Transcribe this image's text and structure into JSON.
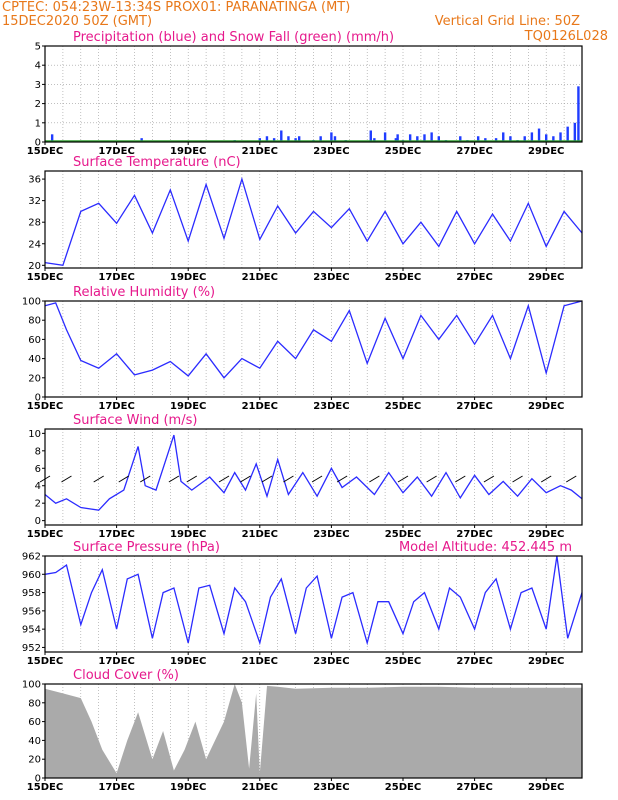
{
  "header": {
    "line1": "CPTEC:  054:23W-13:34S   PROX01: PARANATINGA (MT)",
    "line2_left": "15DEC2020 50Z (GMT)",
    "line2_right": "Vertical Grid Line: 50Z",
    "code": "TQ0126L028"
  },
  "x_labels": [
    "15DEC",
    "17DEC",
    "19DEC",
    "21DEC",
    "23DEC",
    "25DEC",
    "27DEC",
    "29DEC"
  ],
  "colors": {
    "line": "#2b2bff",
    "bar": "#1f3cff",
    "snow": "#2e9e2e",
    "cloud": "#aaaaaa",
    "title": "#e6198c",
    "header": "#e8781a"
  },
  "chart_data": [
    {
      "type": "bar",
      "title": "Precipitation (blue) and Snow Fall (green) (mm/h)",
      "ylim": [
        0,
        5
      ],
      "yticks": [
        0,
        1,
        2,
        3,
        4,
        5
      ],
      "xlim": [
        0,
        15
      ],
      "grid": "dotted",
      "series": [
        {
          "name": "Precipitation",
          "values": [
            [
              0.2,
              0.4
            ],
            [
              2.7,
              0.2
            ],
            [
              5.3,
              0.1
            ],
            [
              6.0,
              0.2
            ],
            [
              6.2,
              0.3
            ],
            [
              6.4,
              0.2
            ],
            [
              6.6,
              0.6
            ],
            [
              6.8,
              0.3
            ],
            [
              7.0,
              0.2
            ],
            [
              7.1,
              0.3
            ],
            [
              7.5,
              0.1
            ],
            [
              7.7,
              0.3
            ],
            [
              8.0,
              0.5
            ],
            [
              8.1,
              0.3
            ],
            [
              8.4,
              0.1
            ],
            [
              9.1,
              0.6
            ],
            [
              9.2,
              0.2
            ],
            [
              9.5,
              0.5
            ],
            [
              9.8,
              0.2
            ],
            [
              9.85,
              0.4
            ],
            [
              10.0,
              0.1
            ],
            [
              10.2,
              0.4
            ],
            [
              10.4,
              0.3
            ],
            [
              10.6,
              0.4
            ],
            [
              10.8,
              0.5
            ],
            [
              11.0,
              0.3
            ],
            [
              11.2,
              0.1
            ],
            [
              11.6,
              0.3
            ],
            [
              11.8,
              0.1
            ],
            [
              12.1,
              0.3
            ],
            [
              12.3,
              0.2
            ],
            [
              12.6,
              0.2
            ],
            [
              12.8,
              0.5
            ],
            [
              13.0,
              0.3
            ],
            [
              13.2,
              0.1
            ],
            [
              13.4,
              0.3
            ],
            [
              13.6,
              0.5
            ],
            [
              13.8,
              0.7
            ],
            [
              14.0,
              0.4
            ],
            [
              14.2,
              0.3
            ],
            [
              14.4,
              0.5
            ],
            [
              14.6,
              0.8
            ],
            [
              14.8,
              1.0
            ],
            [
              14.9,
              2.9
            ]
          ]
        },
        {
          "name": "Snow Fall",
          "values": []
        }
      ]
    },
    {
      "type": "line",
      "title": "Surface Temperature (nC)",
      "ylim": [
        19.5,
        37.5
      ],
      "yticks": [
        20,
        24,
        28,
        32,
        36
      ],
      "xlim": [
        0,
        15
      ],
      "x": [
        0,
        0.5,
        1.0,
        1.5,
        2.0,
        2.5,
        3.0,
        3.5,
        4.0,
        4.5,
        5.0,
        5.5,
        6.0,
        6.5,
        7.0,
        7.5,
        8.0,
        8.5,
        9.0,
        9.5,
        10.0,
        10.5,
        11.0,
        11.5,
        12.0,
        12.5,
        13.0,
        13.5,
        14.0,
        14.5,
        15.0
      ],
      "values": [
        20.5,
        20.0,
        30.0,
        31.5,
        27.8,
        33.0,
        26.0,
        34.0,
        24.5,
        35.0,
        25.0,
        36.0,
        24.8,
        31.0,
        26.0,
        30.0,
        27.0,
        30.5,
        24.5,
        30.0,
        24.0,
        28.0,
        23.5,
        30.0,
        24.0,
        29.5,
        24.5,
        31.5,
        23.5,
        30.0,
        26.0
      ]
    },
    {
      "type": "line",
      "title": "Relative Humidity (%)",
      "ylim": [
        0,
        100
      ],
      "yticks": [
        0,
        20,
        40,
        60,
        80,
        100
      ],
      "xlim": [
        0,
        15
      ],
      "x": [
        0,
        0.3,
        0.6,
        1.0,
        1.5,
        2.0,
        2.5,
        3.0,
        3.5,
        4.0,
        4.5,
        5.0,
        5.5,
        6.0,
        6.5,
        7.0,
        7.5,
        8.0,
        8.5,
        9.0,
        9.5,
        10.0,
        10.5,
        11.0,
        11.5,
        12.0,
        12.5,
        13.0,
        13.5,
        14.0,
        14.5,
        15.0
      ],
      "values": [
        95,
        98,
        70,
        38,
        30,
        45,
        23,
        28,
        37,
        22,
        45,
        20,
        40,
        30,
        58,
        40,
        70,
        58,
        90,
        35,
        82,
        40,
        85,
        60,
        85,
        55,
        85,
        40,
        95,
        25,
        95,
        100
      ]
    },
    {
      "type": "line",
      "title": "Surface Wind (m/s)",
      "ylim": [
        -0.5,
        10.5
      ],
      "yticks": [
        0,
        2,
        4,
        6,
        8,
        10
      ],
      "xlim": [
        0,
        15
      ],
      "x": [
        0,
        0.3,
        0.6,
        1.0,
        1.5,
        1.8,
        2.2,
        2.6,
        2.8,
        3.1,
        3.6,
        3.8,
        4.1,
        4.6,
        5.0,
        5.3,
        5.6,
        5.9,
        6.2,
        6.5,
        6.8,
        7.2,
        7.6,
        8.0,
        8.3,
        8.7,
        9.2,
        9.6,
        10.0,
        10.4,
        10.8,
        11.2,
        11.6,
        12.0,
        12.4,
        12.8,
        13.2,
        13.6,
        14.0,
        14.4,
        14.7,
        15.0
      ],
      "values": [
        3.0,
        2.0,
        2.5,
        1.5,
        1.2,
        2.5,
        3.5,
        8.5,
        4.0,
        3.5,
        9.8,
        4.5,
        3.5,
        5.0,
        3.2,
        5.5,
        3.5,
        6.5,
        2.8,
        7.0,
        3.0,
        5.5,
        2.8,
        6.0,
        3.8,
        5.0,
        3.0,
        5.5,
        3.2,
        5.0,
        2.8,
        5.5,
        2.6,
        5.2,
        3.0,
        4.5,
        2.8,
        4.8,
        3.2,
        4.0,
        3.5,
        2.5
      ],
      "annotations": "wind direction arrows"
    },
    {
      "type": "line",
      "title": "Surface Pressure (hPa)",
      "subtitle": "Model Altitude: 452.445  m",
      "ylim": [
        951.5,
        962
      ],
      "yticks": [
        952,
        954,
        956,
        958,
        960,
        962
      ],
      "xlim": [
        0,
        15
      ],
      "x": [
        0,
        0.3,
        0.6,
        1.0,
        1.3,
        1.6,
        2.0,
        2.3,
        2.6,
        3.0,
        3.3,
        3.6,
        4.0,
        4.3,
        4.6,
        5.0,
        5.3,
        5.6,
        6.0,
        6.3,
        6.6,
        7.0,
        7.3,
        7.6,
        8.0,
        8.3,
        8.6,
        9.0,
        9.3,
        9.6,
        10.0,
        10.3,
        10.6,
        11.0,
        11.3,
        11.6,
        12.0,
        12.3,
        12.6,
        13.0,
        13.3,
        13.6,
        14.0,
        14.3,
        14.6,
        15.0
      ],
      "values": [
        960.0,
        960.2,
        961.0,
        954.5,
        958.0,
        960.5,
        954.0,
        959.5,
        960.0,
        953.0,
        958.0,
        958.5,
        952.5,
        958.5,
        958.8,
        953.5,
        958.5,
        957.0,
        952.5,
        957.5,
        959.5,
        953.5,
        958.5,
        959.8,
        953.0,
        957.5,
        958.0,
        952.5,
        957.0,
        957.0,
        953.5,
        957.0,
        958.0,
        954.0,
        958.5,
        957.5,
        954.0,
        958.0,
        959.5,
        954.0,
        958.0,
        958.5,
        954.0,
        962.0,
        953.0,
        958.0
      ]
    },
    {
      "type": "area",
      "title": "Cloud Cover (%)",
      "ylim": [
        0,
        100
      ],
      "yticks": [
        0,
        20,
        40,
        60,
        80,
        100
      ],
      "xlim": [
        0,
        15
      ],
      "x": [
        0,
        0.5,
        1.0,
        1.3,
        1.6,
        2.0,
        2.3,
        2.6,
        3.0,
        3.3,
        3.6,
        3.9,
        4.2,
        4.5,
        5.0,
        5.3,
        5.5,
        5.7,
        5.9,
        6.0,
        6.2,
        6.5,
        7.0,
        8.0,
        9.0,
        10.0,
        11.0,
        12.0,
        13.0,
        14.0,
        15.0
      ],
      "values": [
        95,
        90,
        85,
        60,
        30,
        5,
        40,
        70,
        20,
        50,
        8,
        30,
        60,
        20,
        60,
        100,
        80,
        10,
        90,
        5,
        98,
        97,
        95,
        96,
        96,
        97,
        97,
        96,
        96,
        96,
        96
      ]
    }
  ]
}
